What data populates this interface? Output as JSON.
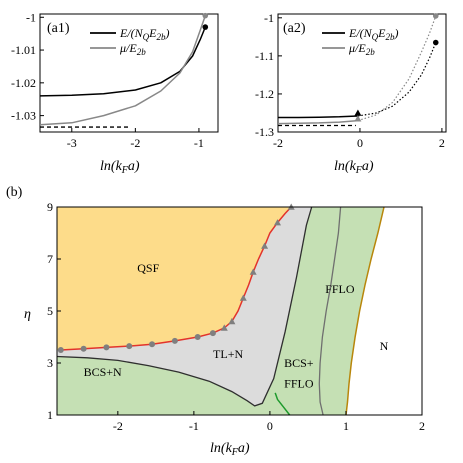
{
  "chart_data": [
    {
      "id": "a1",
      "type": "line",
      "panel_label": "(a1)",
      "xlabel": "ln(k_F a)",
      "xlim": [
        -3.5,
        -0.7
      ],
      "ylim": [
        -1.035,
        -0.999
      ],
      "xticks": [
        -3,
        -2,
        -1
      ],
      "yticks": [
        -1,
        -1.01,
        -1.02,
        -1.03
      ],
      "xtick_labels": [
        "-3",
        "-2",
        "-1"
      ],
      "ytick_labels": [
        "-1",
        "-1.01",
        "-1.02",
        "-1.03"
      ],
      "legend": [
        "E/(N_Q E_2b)",
        "μ/E_2b"
      ],
      "series": [
        {
          "name": "E/(N_Q E_2b)",
          "color": "#000000",
          "x": [
            -3.5,
            -3.0,
            -2.5,
            -2.0,
            -1.6,
            -1.3,
            -1.1,
            -0.98,
            -0.9
          ],
          "y": [
            -1.024,
            -1.0238,
            -1.0233,
            -1.0222,
            -1.02,
            -1.0165,
            -1.0118,
            -1.0068,
            -1.003
          ]
        },
        {
          "name": "μ/E_2b",
          "color": "#888888",
          "x": [
            -3.5,
            -3.0,
            -2.5,
            -2.0,
            -1.6,
            -1.3,
            -1.1,
            -0.98,
            -0.9
          ],
          "y": [
            -1.0328,
            -1.0322,
            -1.03,
            -1.027,
            -1.0225,
            -1.017,
            -1.0105,
            -1.004,
            -0.9995
          ]
        }
      ],
      "reference_dashed": {
        "x": [
          -3.5,
          -2.1
        ],
        "y": -1.0335
      },
      "end_dots": [
        {
          "x": -0.9,
          "y": -1.003,
          "color": "#000000"
        },
        {
          "x": -0.9,
          "y": -0.9995,
          "color": "#888888"
        }
      ]
    },
    {
      "id": "a2",
      "type": "line",
      "panel_label": "(a2)",
      "xlabel": "ln(k_F a)",
      "xlim": [
        -2.0,
        2.1
      ],
      "ylim": [
        -1.3,
        -0.99
      ],
      "xticks": [
        -2,
        0,
        2
      ],
      "yticks": [
        -1,
        -1.1,
        -1.2,
        -1.3
      ],
      "xtick_labels": [
        "-2",
        "0",
        "2"
      ],
      "ytick_labels": [
        "-1",
        "-1.1",
        "-1.2",
        "-1.3"
      ],
      "legend": [
        "E/(N_Q E_2b)",
        "μ/E_2b"
      ],
      "series": [
        {
          "name": "E/(N_Q E_2b)",
          "color": "#000000",
          "style": "solid",
          "x": [
            -2.0,
            -1.5,
            -1.0,
            -0.5,
            -0.05
          ],
          "y": [
            -1.262,
            -1.262,
            -1.261,
            -1.26,
            -1.258
          ]
        },
        {
          "name": "E/(N_Q E_2b)",
          "color": "#000000",
          "style": "dotted",
          "x": [
            -0.05,
            0.4,
            0.8,
            1.2,
            1.5,
            1.7,
            1.85
          ],
          "y": [
            -1.258,
            -1.25,
            -1.232,
            -1.195,
            -1.15,
            -1.105,
            -1.065
          ]
        },
        {
          "name": "μ/E_2b",
          "color": "#888888",
          "style": "solid",
          "x": [
            -2.0,
            -1.5,
            -1.0,
            -0.5,
            -0.05
          ],
          "y": [
            -1.278,
            -1.277,
            -1.276,
            -1.274,
            -1.27
          ]
        },
        {
          "name": "μ/E_2b",
          "color": "#888888",
          "style": "dotted",
          "x": [
            -0.05,
            0.4,
            0.8,
            1.2,
            1.5,
            1.7,
            1.85
          ],
          "y": [
            -1.27,
            -1.255,
            -1.222,
            -1.16,
            -1.09,
            -1.04,
            -0.995
          ]
        }
      ],
      "reference_dashed": {
        "x": [
          -2.0,
          -0.1
        ],
        "y": -1.283
      },
      "triangles": [
        {
          "x": -0.05,
          "y": -1.25,
          "color": "#000000"
        },
        {
          "x": -0.05,
          "y": -1.265,
          "color": "#888888"
        }
      ],
      "end_dots": [
        {
          "x": 1.85,
          "y": -1.065,
          "color": "#000000"
        },
        {
          "x": 1.85,
          "y": -0.995,
          "color": "#888888"
        }
      ]
    },
    {
      "id": "b",
      "type": "area",
      "panel_label": "(b)",
      "xlabel": "ln(k_F a)",
      "ylabel": "η",
      "xlim": [
        -2.8,
        2.0
      ],
      "ylim": [
        1,
        9
      ],
      "xticks": [
        -2,
        -1,
        0,
        1,
        2
      ],
      "yticks": [
        1,
        3,
        5,
        7,
        9
      ],
      "xtick_labels": [
        "-2",
        "-1",
        "0",
        "1",
        "2"
      ],
      "ytick_labels": [
        "1",
        "3",
        "5",
        "7",
        "9"
      ],
      "colors": {
        "qsf": "#fddc8a",
        "tl": "#dcdcdc",
        "green": "#c5e0b4",
        "red": "#e3332b",
        "marker": "#7f7f7f",
        "dkgreen": "#1e9a2c",
        "gold": "#b8860b",
        "boundary": "#2f2f2f",
        "fflo_line": "#6f6f6f"
      },
      "regions": [
        {
          "name": "QSF",
          "label_x": -1.6,
          "label_y": 6.5
        },
        {
          "name": "TL+N",
          "label_x": -0.55,
          "label_y": 3.2
        },
        {
          "name": "BCS+N",
          "label_x": -2.2,
          "label_y": 2.5
        },
        {
          "name": "FFLO",
          "label_x": 0.92,
          "label_y": 5.7
        },
        {
          "name": "BCS+",
          "label_x": 0.38,
          "label_y": 2.85
        },
        {
          "name": "FFLO",
          "label_x": 0.38,
          "label_y": 2.05
        },
        {
          "name": "N",
          "label_x": 1.5,
          "label_y": 3.5
        }
      ],
      "qsf_boundary": {
        "x": [
          -2.75,
          -2.45,
          -2.15,
          -1.85,
          -1.55,
          -1.25,
          -0.95,
          -0.75,
          -0.6,
          -0.5,
          -0.42,
          -0.35,
          -0.28,
          -0.22,
          -0.15,
          -0.07,
          0.0,
          0.1,
          0.2,
          0.28
        ],
        "y": [
          3.5,
          3.55,
          3.6,
          3.65,
          3.72,
          3.85,
          4.0,
          4.15,
          4.35,
          4.6,
          5.0,
          5.5,
          6.0,
          6.5,
          7.0,
          7.5,
          8.0,
          8.4,
          8.75,
          9.0
        ]
      },
      "qsf_markers": {
        "circles_x": [
          -2.75,
          -2.45,
          -2.15,
          -1.85,
          -1.55,
          -1.25,
          -0.95,
          -0.75
        ],
        "circles_y": [
          3.5,
          3.55,
          3.6,
          3.65,
          3.72,
          3.85,
          4.0,
          4.15
        ],
        "triangles_x": [
          -0.6,
          -0.5,
          -0.35,
          -0.22,
          -0.07,
          0.1,
          0.28
        ],
        "triangles_y": [
          4.35,
          4.6,
          5.5,
          6.5,
          7.5,
          8.4,
          9.0
        ]
      },
      "bcs_boundary": {
        "x": [
          -2.8,
          -2.4,
          -2.0,
          -1.6,
          -1.2,
          -0.8,
          -0.5,
          -0.3,
          -0.2,
          -0.1,
          0.05,
          0.2,
          0.35,
          0.48,
          0.55
        ],
        "y": [
          3.25,
          3.2,
          3.1,
          2.9,
          2.65,
          2.3,
          1.9,
          1.55,
          1.35,
          1.45,
          2.4,
          4.2,
          6.3,
          8.3,
          9.0
        ]
      },
      "bcs_fflo_line": {
        "x": [
          0.07,
          0.1,
          0.18,
          0.26
        ],
        "y": [
          1.85,
          1.6,
          1.3,
          1.0
        ]
      },
      "fflo_line": {
        "x": [
          0.93,
          0.9,
          0.85,
          0.8,
          0.74,
          0.69,
          0.66,
          0.65,
          0.66,
          0.7
        ],
        "y": [
          9.0,
          8.0,
          7.0,
          6.0,
          5.0,
          4.0,
          3.0,
          2.2,
          1.5,
          1.0
        ]
      },
      "n_boundary": {
        "x": [
          1.5,
          1.42,
          1.33,
          1.25,
          1.18,
          1.12,
          1.07,
          1.04,
          1.02,
          1.0
        ],
        "y": [
          9.0,
          8.0,
          7.0,
          6.0,
          5.0,
          4.0,
          3.0,
          2.2,
          1.5,
          1.0
        ]
      }
    }
  ]
}
